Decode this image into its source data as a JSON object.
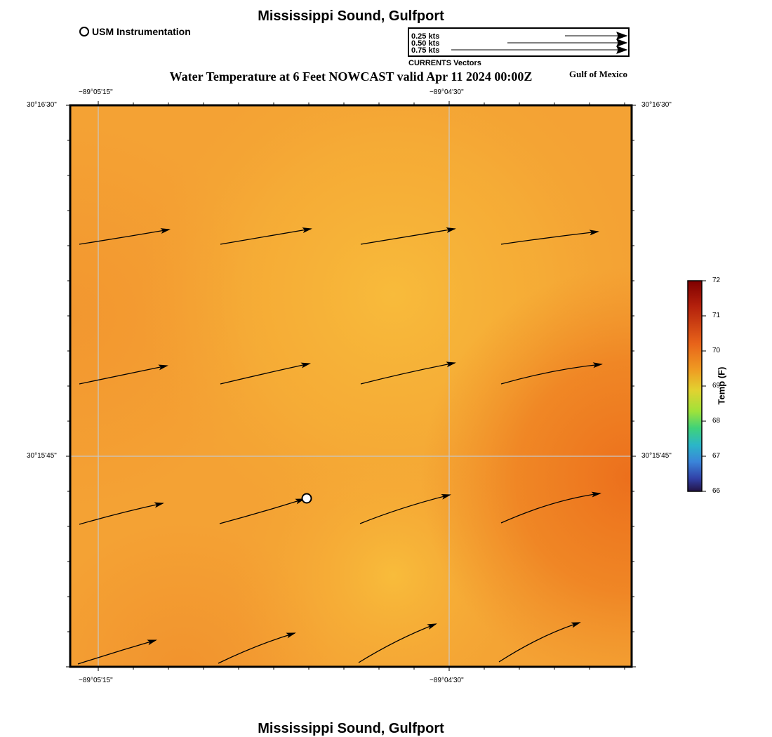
{
  "header": {
    "title": "Mississippi Sound, Gulfport"
  },
  "footer": {
    "title": "Mississippi Sound, Gulfport"
  },
  "usm_legend": {
    "label": "USM Instrumentation"
  },
  "vector_legend": {
    "entries": [
      "0.25 kts",
      "0.50 kts",
      "0.75 kts"
    ],
    "caption": "CURRENTS Vectors"
  },
  "map": {
    "title": "Water Temperature at 6 Feet NOWCAST valid Apr 11 2024 00:00Z",
    "region_label": "Gulf of Mexico",
    "lon_ticks_top": [
      "−89°05'15\"",
      "−89°04'30\""
    ],
    "lon_ticks_bottom": [
      "−89°05'15\"",
      "−89°04'30\""
    ],
    "lat_ticks_left": [
      "30°16'30\"",
      "30°15'45\""
    ],
    "lat_ticks_right": [
      "30°16'30\"",
      "30°15'45\""
    ]
  },
  "colorbar": {
    "title": "Temp (F)",
    "ticks": [
      "72",
      "71",
      "70",
      "69",
      "68",
      "67",
      "66"
    ],
    "colors": [
      "#7f0000",
      "#c0280a",
      "#ef7d1a",
      "#e9c02e",
      "#c8e234",
      "#3fcf6a",
      "#25b5c9",
      "#3a7ad6",
      "#2f3ea8",
      "#25164e"
    ]
  },
  "field_colors": {
    "base": "#f4a234",
    "warm": "#ed7820",
    "cool": "#f7b83a"
  }
}
